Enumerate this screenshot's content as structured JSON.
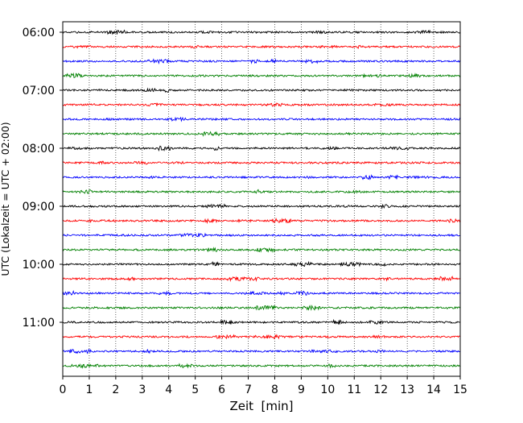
{
  "chart_data": {
    "type": "line",
    "title": "",
    "xlabel": "Zeit  [min]",
    "ylabel": "UTC (Lokalzeit = UTC + 02:00)",
    "xlim": [
      0,
      15
    ],
    "x_ticks": [
      0,
      1,
      2,
      3,
      4,
      5,
      6,
      7,
      8,
      9,
      10,
      11,
      12,
      13,
      14,
      15
    ],
    "y_tick_labels": [
      "06:00",
      "07:00",
      "08:00",
      "09:00",
      "10:00",
      "11:00"
    ],
    "trace_interval_minutes": 15,
    "series_colors": [
      "#000000",
      "#ff0000",
      "#0000ff",
      "#008000"
    ],
    "rows": [
      {
        "start": "06:00",
        "color": "#000000"
      },
      {
        "start": "06:15",
        "color": "#ff0000"
      },
      {
        "start": "06:30",
        "color": "#0000ff"
      },
      {
        "start": "06:45",
        "color": "#008000"
      },
      {
        "start": "07:00",
        "color": "#000000"
      },
      {
        "start": "07:15",
        "color": "#ff0000"
      },
      {
        "start": "07:30",
        "color": "#0000ff"
      },
      {
        "start": "07:45",
        "color": "#008000"
      },
      {
        "start": "08:00",
        "color": "#000000"
      },
      {
        "start": "08:15",
        "color": "#ff0000"
      },
      {
        "start": "08:30",
        "color": "#0000ff"
      },
      {
        "start": "08:45",
        "color": "#008000"
      },
      {
        "start": "09:00",
        "color": "#000000"
      },
      {
        "start": "09:15",
        "color": "#ff0000"
      },
      {
        "start": "09:30",
        "color": "#0000ff"
      },
      {
        "start": "09:45",
        "color": "#008000"
      },
      {
        "start": "10:00",
        "color": "#000000"
      },
      {
        "start": "10:15",
        "color": "#ff0000"
      },
      {
        "start": "10:30",
        "color": "#0000ff"
      },
      {
        "start": "10:45",
        "color": "#008000"
      },
      {
        "start": "11:00",
        "color": "#000000"
      },
      {
        "start": "11:15",
        "color": "#ff0000"
      },
      {
        "start": "11:30",
        "color": "#0000ff"
      },
      {
        "start": "11:45",
        "color": "#008000"
      }
    ],
    "grid": {
      "vertical": true,
      "style": "dotted"
    }
  }
}
